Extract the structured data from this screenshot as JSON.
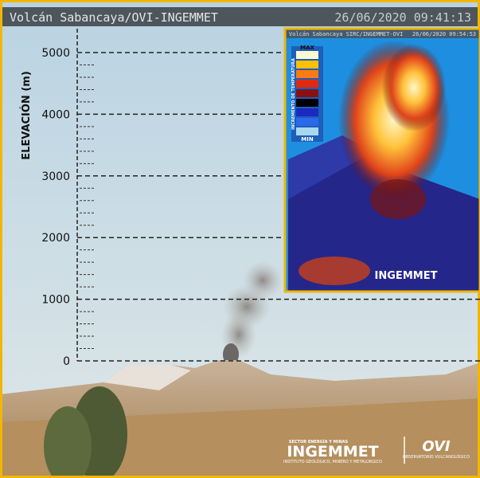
{
  "header": {
    "title": "Volcán Sabancaya/OVI-INGEMMET",
    "timestamp": "26/06/2020 09:41:13"
  },
  "scale": {
    "label": "ELEVACIÓN (m)",
    "ticks": [
      5000,
      4000,
      3000,
      2000,
      1000,
      0
    ]
  },
  "inset": {
    "title": "Volcán Sabancaya SIRC/INGEMMET-OVI",
    "timestamp": "26/06/2020 09:54:53",
    "legend": {
      "max": "MAX",
      "label": "INCREMENTO DE TEMPERATURA",
      "min": "MIN"
    },
    "logo": "INGEMMET"
  },
  "logos": {
    "sector": "SECTOR ENERGÍA Y MINAS",
    "ingemmet": "INGEMMET",
    "ingemmet_sub": "INSTITUTO GEOLÓGICO, MINERO Y METALÚRGICO",
    "ovi": "OVI",
    "ovi_sub": "OBSERVATORIO VULCANOLÓGICO"
  }
}
